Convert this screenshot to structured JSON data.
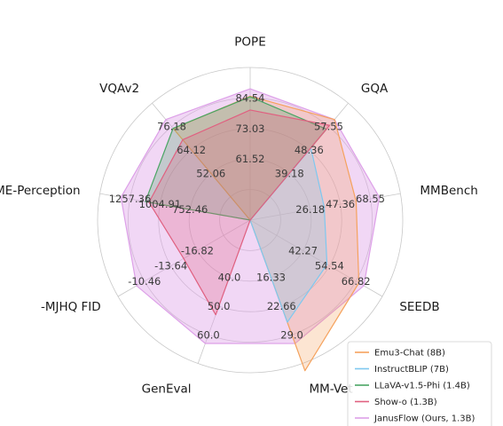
{
  "chart_data": {
    "type": "radar",
    "axes": [
      "POPE",
      "GQA",
      "MMBench",
      "SEEDB",
      "MM-Vet",
      "GenEval",
      "-MJHQ FID",
      "MME-Perception",
      "VQAv2"
    ],
    "tick_labels": [
      [
        "61.52",
        "73.03",
        "84.54"
      ],
      [
        "39.18",
        "48.36",
        "57.55"
      ],
      [
        "26.18",
        "47.36",
        "68.55"
      ],
      [
        "42.27",
        "54.54",
        "66.82"
      ],
      [
        "16.33",
        "22.66",
        "29.0"
      ],
      [
        "40.0",
        "50.0",
        "60.0"
      ],
      [
        "-16.82",
        "-13.64",
        "-10.46"
      ],
      [
        "752.46",
        "1004.91",
        "1257.36"
      ],
      [
        "52.06",
        "64.12",
        "76.18"
      ]
    ],
    "grid": true,
    "legend_position": "bottom-right",
    "series": [
      {
        "name": "Emu3-Chat (8B)",
        "color": "#f5a25d",
        "values": [
          85.2,
          60.3,
          58.5,
          68.2,
          37.2,
          null,
          null,
          null,
          75.1
        ]
      },
      {
        "name": "InstructBLIP (7B)",
        "color": "#7ec8f0",
        "values": [
          null,
          49.2,
          36.0,
          53.4,
          26.2,
          null,
          null,
          null,
          null
        ]
      },
      {
        "name": "LLaVA-v1.5-Phi (1.4B)",
        "color": "#4aa564",
        "values": [
          85.0,
          56.5,
          null,
          null,
          null,
          null,
          null,
          1128.0,
          75.3
        ]
      },
      {
        "name": "Show-o (1.3B)",
        "color": "#e06080",
        "values": [
          80.0,
          58.0,
          null,
          null,
          null,
          53.0,
          -15.18,
          1097.2,
          69.4
        ]
      },
      {
        "name": "JanusFlow (Ours, 1.3B)",
        "color": "#dda0e8",
        "values": [
          88.0,
          60.3,
          74.9,
          70.5,
          30.9,
          63.0,
          -9.51,
          1333.1,
          79.8
        ]
      }
    ]
  }
}
